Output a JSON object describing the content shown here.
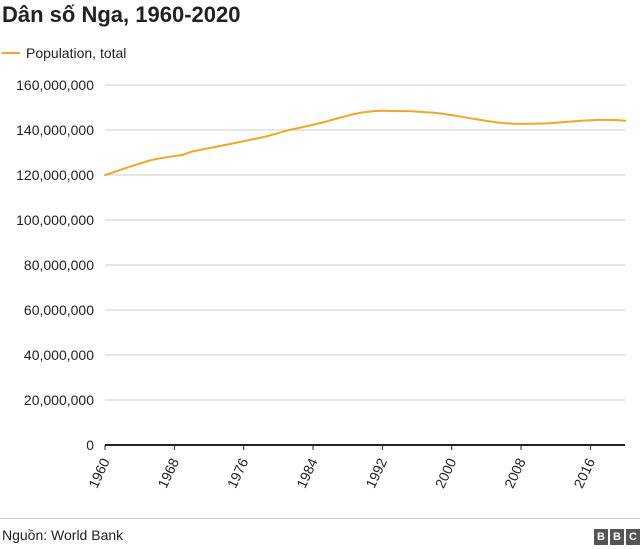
{
  "chart_data": {
    "type": "line",
    "title": "Dân số Nga, 1960-2020",
    "legend": [
      "Population, total"
    ],
    "xlabel": "",
    "ylabel": "",
    "x": [
      1960,
      1961,
      1962,
      1963,
      1964,
      1965,
      1966,
      1967,
      1968,
      1969,
      1970,
      1971,
      1972,
      1973,
      1974,
      1975,
      1976,
      1977,
      1978,
      1979,
      1980,
      1981,
      1982,
      1983,
      1984,
      1985,
      1986,
      1987,
      1988,
      1989,
      1990,
      1991,
      1992,
      1993,
      1994,
      1995,
      1996,
      1997,
      1998,
      1999,
      2000,
      2001,
      2002,
      2003,
      2004,
      2005,
      2006,
      2007,
      2008,
      2009,
      2010,
      2011,
      2012,
      2013,
      2014,
      2015,
      2016,
      2017,
      2018,
      2019,
      2020
    ],
    "series": [
      {
        "name": "Population, total",
        "values": [
          119897000,
          121236000,
          122591000,
          123848000,
          125060000,
          126309000,
          127189000,
          127818000,
          128418000,
          128966000,
          130404000,
          131155000,
          131909000,
          132669000,
          133432000,
          134233000,
          135026000,
          135824000,
          136600000,
          137551000,
          138655000,
          139781000,
          140628000,
          141479000,
          142338000,
          143227000,
          144280000,
          145380000,
          146355000,
          147332000,
          147969000,
          148394000,
          148538000,
          148458000,
          148408000,
          148376000,
          148160000,
          147915000,
          147671000,
          147215000,
          146597000,
          145976000,
          145306000,
          144649000,
          144067000,
          143519000,
          143049000,
          142805000,
          142742000,
          142785000,
          142849000,
          142960000,
          143202000,
          143507000,
          143820000,
          144097000,
          144342000,
          144496000,
          144478000,
          144406000,
          144104000
        ]
      }
    ],
    "xticks": [
      "1960",
      "1968",
      "1976",
      "1984",
      "1992",
      "2000",
      "2008",
      "2016"
    ],
    "yticks": [
      "0",
      "20,000,000",
      "40,000,000",
      "60,000,000",
      "80,000,000",
      "100,000,000",
      "120,000,000",
      "140,000,000",
      "160,000,000"
    ],
    "ylim": [
      0,
      160000000
    ],
    "xlim": [
      1960,
      2020
    ],
    "grid": true,
    "colors": {
      "line": "#f0a828",
      "grid": "#cccccc",
      "baseline": "#222222"
    },
    "source": "Nguồn: World Bank",
    "logo": [
      "B",
      "B",
      "C"
    ]
  }
}
